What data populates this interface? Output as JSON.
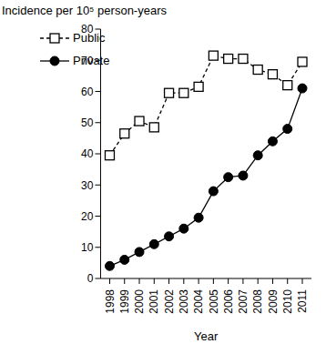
{
  "chart_data": {
    "type": "line",
    "title": "Incidence per 10⁵ person-years",
    "x_label": "Year",
    "x": [
      1998,
      1999,
      2000,
      2001,
      2002,
      2003,
      2004,
      2005,
      2006,
      2007,
      2008,
      2009,
      2010,
      2011
    ],
    "series": [
      {
        "name": "Public",
        "color": "#000000",
        "marker": "square",
        "line_style": "dashed",
        "values": [
          39.5,
          46.5,
          50.5,
          48.5,
          59.5,
          59.5,
          61.5,
          71.5,
          70.5,
          70.5,
          67,
          65.5,
          62,
          69.5
        ]
      },
      {
        "name": "Private",
        "color": "#000000",
        "marker": "circle",
        "line_style": "solid",
        "values": [
          4,
          6,
          8.5,
          11,
          13.5,
          16,
          19.5,
          28,
          32.5,
          33,
          39.5,
          44,
          48,
          61
        ]
      }
    ],
    "ylim": [
      0,
      80
    ],
    "yticks": [
      0,
      10,
      20,
      30,
      40,
      50,
      60,
      70,
      80
    ],
    "grid": false,
    "legend": "upper left"
  }
}
